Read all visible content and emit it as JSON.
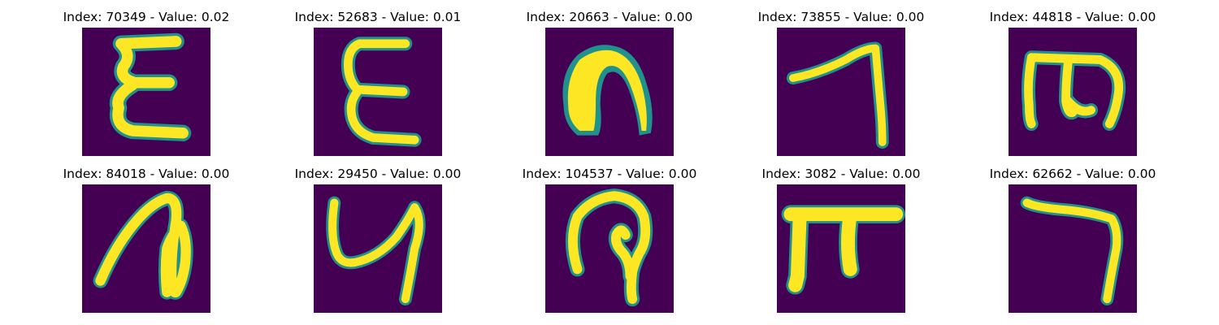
{
  "colormap": {
    "background": "#440154",
    "stroke_edge": "#21918c",
    "stroke_mid": "#5ec962",
    "stroke": "#fde725"
  },
  "panels": [
    {
      "index": 70349,
      "value": "0.02",
      "title": "Index: 70349 - Value: 0.02",
      "glyph": "handwritten-character-epsilon"
    },
    {
      "index": 52683,
      "value": "0.01",
      "title": "Index: 52683 - Value: 0.01",
      "glyph": "handwritten-character-e"
    },
    {
      "index": 20663,
      "value": "0.00",
      "title": "Index: 20663 - Value: 0.00",
      "glyph": "handwritten-character-n"
    },
    {
      "index": 73855,
      "value": "0.00",
      "title": "Index: 73855 - Value: 0.00",
      "glyph": "handwritten-character-7"
    },
    {
      "index": 44818,
      "value": "0.00",
      "title": "Index: 44818 - Value: 0.00",
      "glyph": "handwritten-character-m"
    },
    {
      "index": 84018,
      "value": "0.00",
      "title": "Index: 84018 - Value: 0.00",
      "glyph": "handwritten-character-loop"
    },
    {
      "index": 29450,
      "value": "0.00",
      "title": "Index: 29450 - Value: 0.00",
      "glyph": "handwritten-character-y"
    },
    {
      "index": 104537,
      "value": "0.00",
      "title": "Index: 104537 - Value: 0.00",
      "glyph": "handwritten-character-p"
    },
    {
      "index": 3082,
      "value": "0.00",
      "title": "Index: 3082 - Value: 0.00",
      "glyph": "handwritten-character-pi"
    },
    {
      "index": 62662,
      "value": "0.00",
      "title": "Index: 62662 - Value: 0.00",
      "glyph": "handwritten-character-7b"
    }
  ]
}
